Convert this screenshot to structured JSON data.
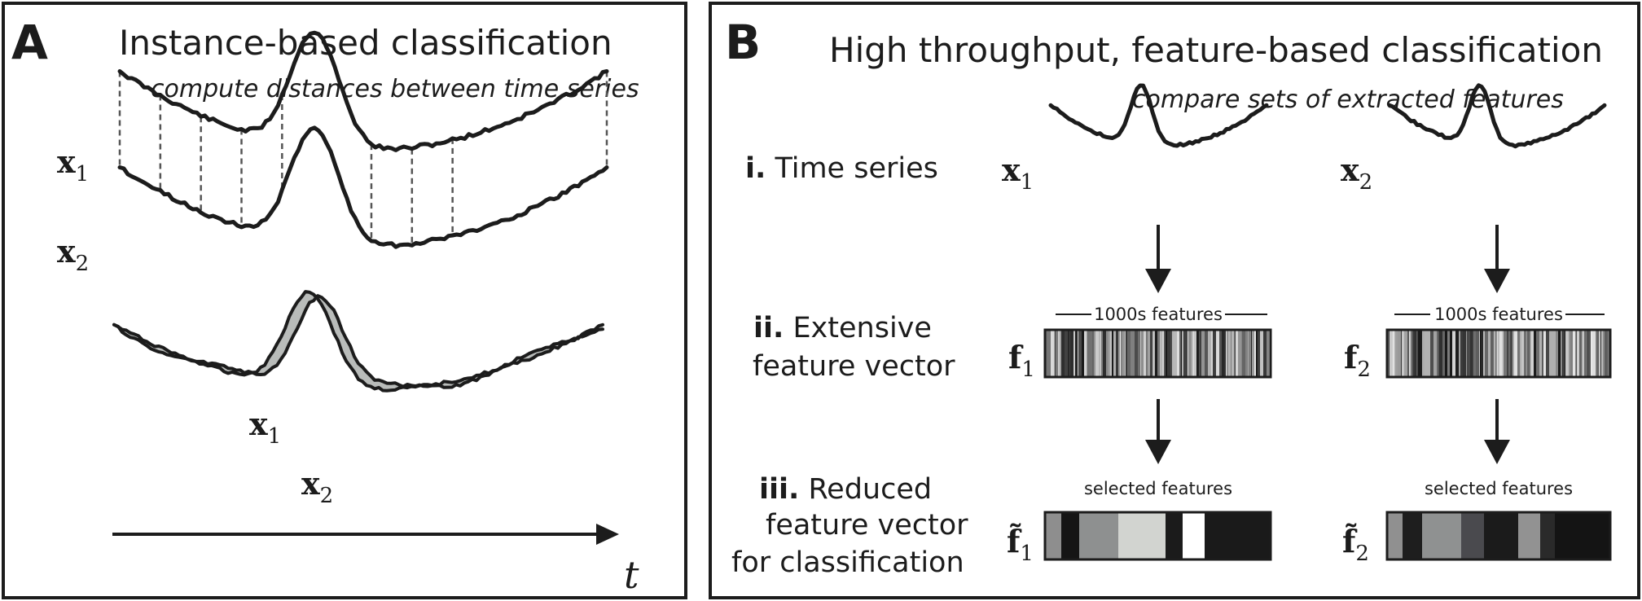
{
  "panel_a": {
    "letter": "A",
    "title": "Instance-based classification",
    "subtitle": "compute distances between time series",
    "series1_label": "x",
    "series1_sub": "1",
    "series2_label": "x",
    "series2_sub": "2",
    "axis_label": "t"
  },
  "panel_b": {
    "letter": "B",
    "title": "High throughput, feature-based classification",
    "subtitle": "compare sets of extracted features",
    "steps": [
      {
        "num": "i.",
        "lines": [
          "Time series"
        ]
      },
      {
        "num": "ii.",
        "lines": [
          "Extensive",
          "feature vector"
        ]
      },
      {
        "num": "iii.",
        "lines": [
          "Reduced",
          "feature vector",
          "for classification"
        ]
      }
    ],
    "columns": [
      {
        "series_label": "x",
        "series_sub": "1",
        "vector_label": "f",
        "vector_sub": "1",
        "reduced_label": "f̃",
        "reduced_sub": "1",
        "features_caption": "1000s features",
        "selected_caption": "selected features"
      },
      {
        "series_label": "x",
        "series_sub": "2",
        "vector_label": "f",
        "vector_sub": "2",
        "reduced_label": "f̃",
        "reduced_sub": "2",
        "features_caption": "1000s features",
        "selected_caption": "selected features"
      }
    ]
  },
  "colors": {
    "ink": "#1c1c1c",
    "area_fill": "#b9bcba",
    "dash": "#555555"
  }
}
